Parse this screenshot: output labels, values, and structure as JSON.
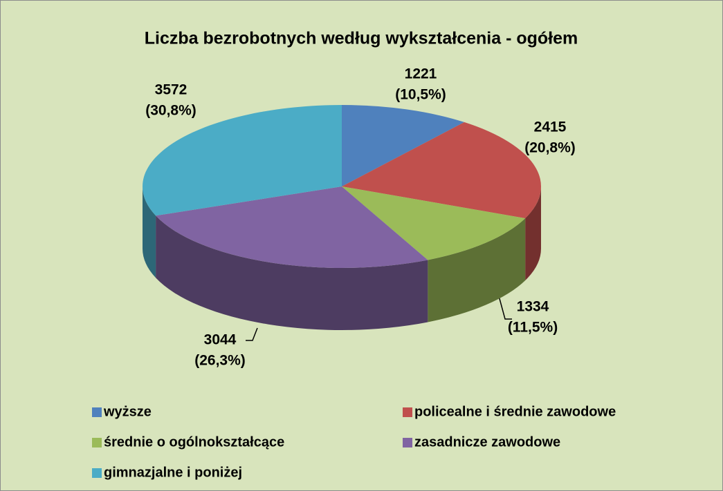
{
  "chart_data": {
    "type": "pie3d",
    "title": "Liczba bezrobotnych według wykształcenia - ogółem",
    "categories": [
      "wyższe",
      "policealne i średnie zawodowe",
      "średnie o ogólnokształcące",
      "zasadnicze zawodowe",
      "gimnazjalne i poniżej"
    ],
    "values": [
      1221,
      2415,
      1334,
      3044,
      3572
    ],
    "percent_labels": [
      "(10,5%)",
      "(20,8%)",
      "(11,5%)",
      "(26,3%)",
      "(30,8%)"
    ],
    "colors": [
      "#4f81bd",
      "#c0504d",
      "#9bbb59",
      "#8064a2",
      "#4bacc6"
    ],
    "legend": "bottom"
  }
}
